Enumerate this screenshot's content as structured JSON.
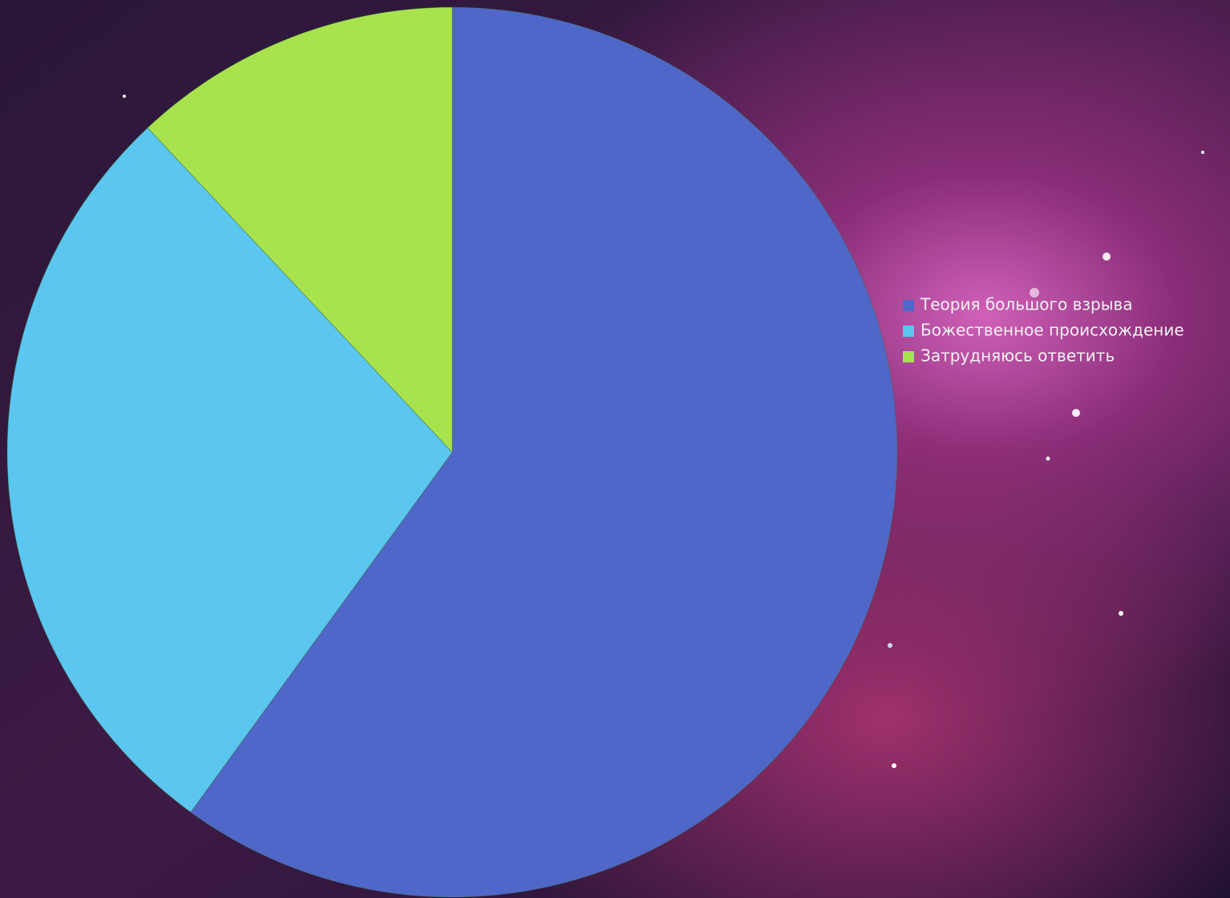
{
  "chart_data": {
    "type": "pie",
    "categories": [
      "Теория большого взрыва",
      "Божественное происхождение",
      "Затрудняюсь ответить"
    ],
    "values": [
      60,
      28,
      12
    ],
    "colors": [
      "#4f67c8",
      "#5bc6ef",
      "#a8e34e"
    ],
    "legend": "right"
  }
}
